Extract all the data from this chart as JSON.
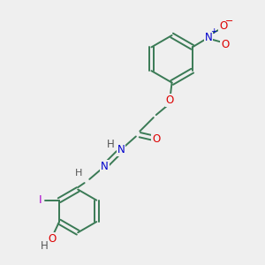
{
  "bg_color": "#efefef",
  "bond_color": "#3a7a55",
  "atom_colors": {
    "O": "#dd0000",
    "N": "#0000cc",
    "H": "#555555",
    "I": "#aa00cc",
    "C": "#3a7a55"
  },
  "font_size_atom": 8.5,
  "font_size_charge": 7.5
}
